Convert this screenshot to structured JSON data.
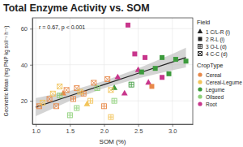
{
  "chart_data": {
    "type": "scatter",
    "title": "Total Enzyme Activity vs. SOM",
    "x_label": "SOM (%)",
    "y_label": "Geometric Mean (mg PNP kg soil⁻¹ h⁻¹)",
    "annotation": "r = 0.67, p < 0.001",
    "xlim": [
      0.95,
      3.3
    ],
    "ylim": [
      7,
      66
    ],
    "xticks": [
      {
        "value": 1,
        "label": "1.0"
      },
      1.5,
      {
        "value": 2,
        "label": "2.0"
      },
      2.5,
      {
        "value": 3,
        "label": "3.0"
      }
    ],
    "yticks": [
      20,
      40,
      60
    ],
    "grid": true,
    "legend": "right",
    "legend_title": "Field",
    "series": [
      {
        "name": "1 C/L-R (i)",
        "marker": "triangle",
        "x": [
          1.4,
          1.75,
          2.15,
          2.3,
          2.5,
          2.65,
          2.2
        ],
        "values": [
          24,
          18,
          27,
          24,
          37,
          30,
          33
        ],
        "colors": [
          "#e8894a",
          "#f2c45a",
          "#3c9a3c",
          "#c8368c",
          "#c8368c",
          "#c8368c",
          "#c8368c"
        ]
      },
      {
        "name": "2 R-L (i)",
        "marker": "square",
        "x": [
          2.35,
          2.45,
          2.6,
          2.75,
          2.85,
          2.95,
          3.05,
          3.2,
          2.55,
          2.85,
          2.7
        ],
        "values": [
          62,
          46,
          44,
          38,
          44,
          35,
          43,
          42,
          36,
          33,
          28
        ],
        "colors": [
          "#c8368c",
          "#c8368c",
          "#c8368c",
          "#3c9a3c",
          "#3c9a3c",
          "#3c9a3c",
          "#3c9a3c",
          "#3c9a3c",
          "#3c9a3c",
          "#c8368c",
          "#e8894a"
        ]
      },
      {
        "name": "3 O-L (d)",
        "marker": "square-plus",
        "x": [
          1.35,
          1.5,
          1.6,
          1.7,
          1.8,
          2.0,
          2.1,
          2.15,
          1.9,
          2.4,
          1.55
        ],
        "values": [
          23,
          12,
          16,
          24,
          20,
          17,
          11,
          20,
          27,
          29,
          21
        ],
        "colors": [
          "#8fd17a",
          "#8fd17a",
          "#8fd17a",
          "#e8894a",
          "#f2c45a",
          "#e8894a",
          "#f2c45a",
          "#8fd17a",
          "#8fd17a",
          "#3c9a3c",
          "#e8894a"
        ]
      },
      {
        "name": "4 C-C (d)",
        "marker": "square-cross",
        "x": [
          1.05,
          1.1,
          1.2,
          1.25,
          1.3,
          1.45,
          1.6,
          1.65,
          1.85,
          2.05,
          2.1,
          1.35
        ],
        "values": [
          17,
          19,
          21,
          24,
          17,
          26,
          27,
          25,
          30,
          32,
          26,
          28
        ],
        "colors": [
          "#e8894a",
          "#f2c45a",
          "#e8894a",
          "#f2c45a",
          "#e8894a",
          "#e8894a",
          "#e8894a",
          "#f2c45a",
          "#e8894a",
          "#e8894a",
          "#f2c45a",
          "#f2c45a"
        ]
      }
    ],
    "color_legend": {
      "title": "CropType",
      "names": [
        "Cereal",
        "Cereal-Legume",
        "Legume",
        "Oilseed",
        "Root"
      ],
      "colors": [
        "#e8894a",
        "#f2c45a",
        "#3c9a3c",
        "#8fd17a",
        "#c8368c"
      ]
    },
    "fit": {
      "color": "#222222",
      "x": [
        1.0,
        1.5,
        2.0,
        2.5,
        3.0,
        3.2
      ],
      "values": [
        16.5,
        22.75,
        29,
        35.25,
        41.5,
        44
      ],
      "lower": [
        11.5,
        20,
        27,
        32.5,
        37,
        38.5
      ],
      "upper": [
        21.5,
        25.5,
        31,
        38,
        46,
        49.5
      ]
    }
  }
}
